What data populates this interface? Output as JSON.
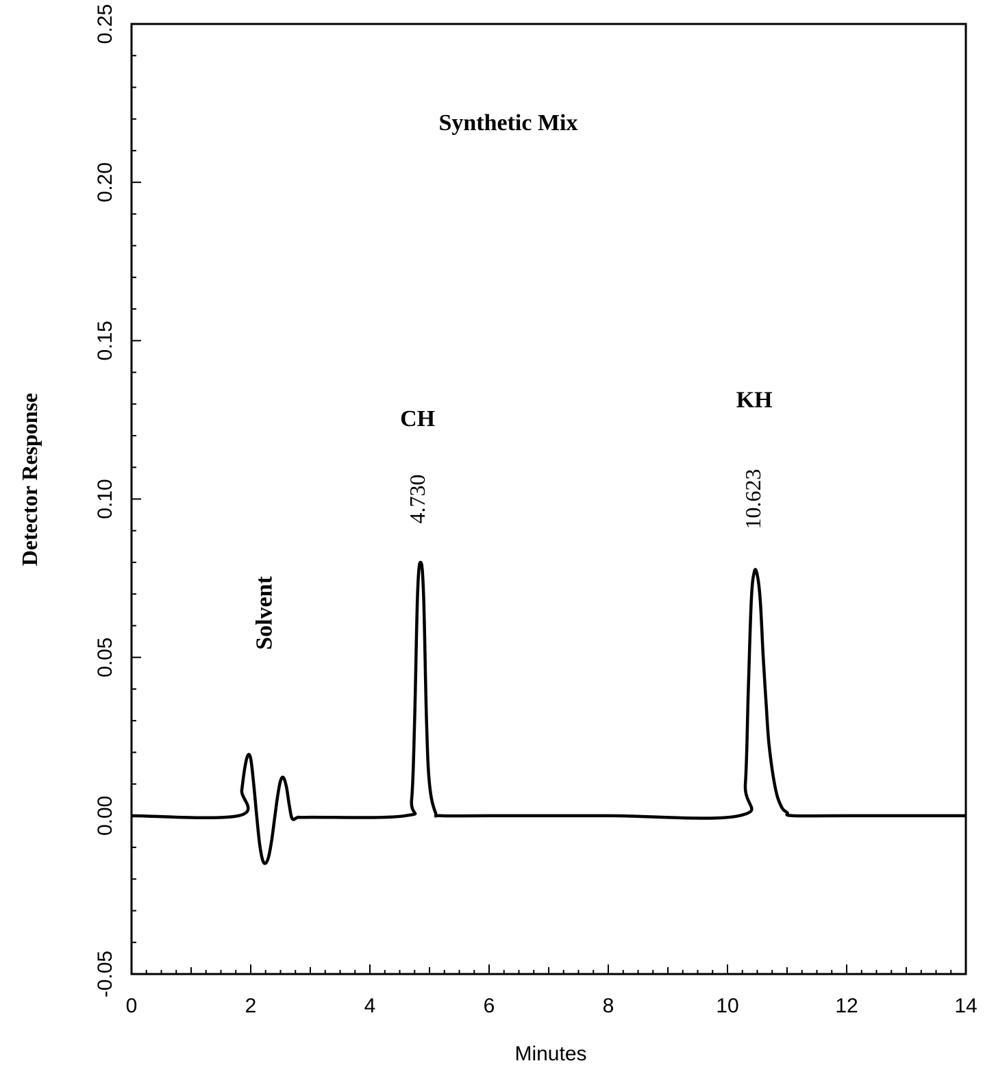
{
  "chart_data": {
    "type": "line",
    "title": "Synthetic Mix",
    "xlabel": "Minutes",
    "ylabel": "Detector Response",
    "xlim": [
      0,
      14
    ],
    "ylim": [
      -0.05,
      0.25
    ],
    "x_ticks": [
      "0",
      "2",
      "4",
      "6",
      "8",
      "10",
      "12",
      "14"
    ],
    "y_ticks": [
      "-0.05",
      "0.00",
      "0.05",
      "0.10",
      "0.15",
      "0.20",
      "0.25"
    ],
    "x_tick_values": [
      0,
      2,
      4,
      6,
      8,
      10,
      12,
      14
    ],
    "y_tick_values": [
      -0.05,
      0,
      0.05,
      0.1,
      0.15,
      0.2,
      0.25
    ],
    "grid": false,
    "line_color": "#000000",
    "series": [
      {
        "x": [
          0,
          1.8,
          1.85,
          1.9,
          1.95,
          2.0,
          2.05,
          2.1,
          2.15,
          2.2,
          2.25,
          2.3,
          2.35,
          2.4,
          2.45,
          2.5,
          2.55,
          2.6,
          2.65,
          2.7,
          2.8,
          3.0,
          4.6,
          4.7,
          4.75,
          4.8,
          4.85,
          4.9,
          4.95,
          5.0,
          5.1,
          5.2,
          6.0,
          8.0,
          10.2,
          10.3,
          10.35,
          10.4,
          10.45,
          10.5,
          10.55,
          10.6,
          10.65,
          10.7,
          10.8,
          10.9,
          11.0,
          11.1,
          12.0,
          14.0
        ],
        "y": [
          0,
          0,
          0.008,
          0.015,
          0.019,
          0.018,
          0.01,
          0.0,
          -0.009,
          -0.014,
          -0.015,
          -0.013,
          -0.008,
          -0.001,
          0.006,
          0.011,
          0.012,
          0.009,
          0.003,
          -0.001,
          -0.0005,
          -0.0005,
          0,
          0.005,
          0.03,
          0.07,
          0.08,
          0.07,
          0.03,
          0.01,
          0.001,
          0,
          0,
          0,
          0,
          0.01,
          0.04,
          0.068,
          0.077,
          0.076,
          0.068,
          0.05,
          0.035,
          0.022,
          0.009,
          0.003,
          0.001,
          0,
          0,
          0
        ]
      }
    ],
    "annotations": [
      {
        "id": "solvent",
        "text": "Solvent",
        "x": 2.35,
        "y": 0.064,
        "rotate": -90
      },
      {
        "id": "ch",
        "text": "CH",
        "x": 4.8,
        "y": 0.123,
        "rotate": 0
      },
      {
        "id": "ch_rt",
        "text": "4.730",
        "x": 4.92,
        "y": 0.1,
        "rotate": -90
      },
      {
        "id": "kh",
        "text": "KH",
        "x": 10.45,
        "y": 0.129,
        "rotate": 0
      },
      {
        "id": "kh_rt",
        "text": "10.623",
        "x": 10.55,
        "y": 0.1,
        "rotate": -90
      }
    ]
  }
}
